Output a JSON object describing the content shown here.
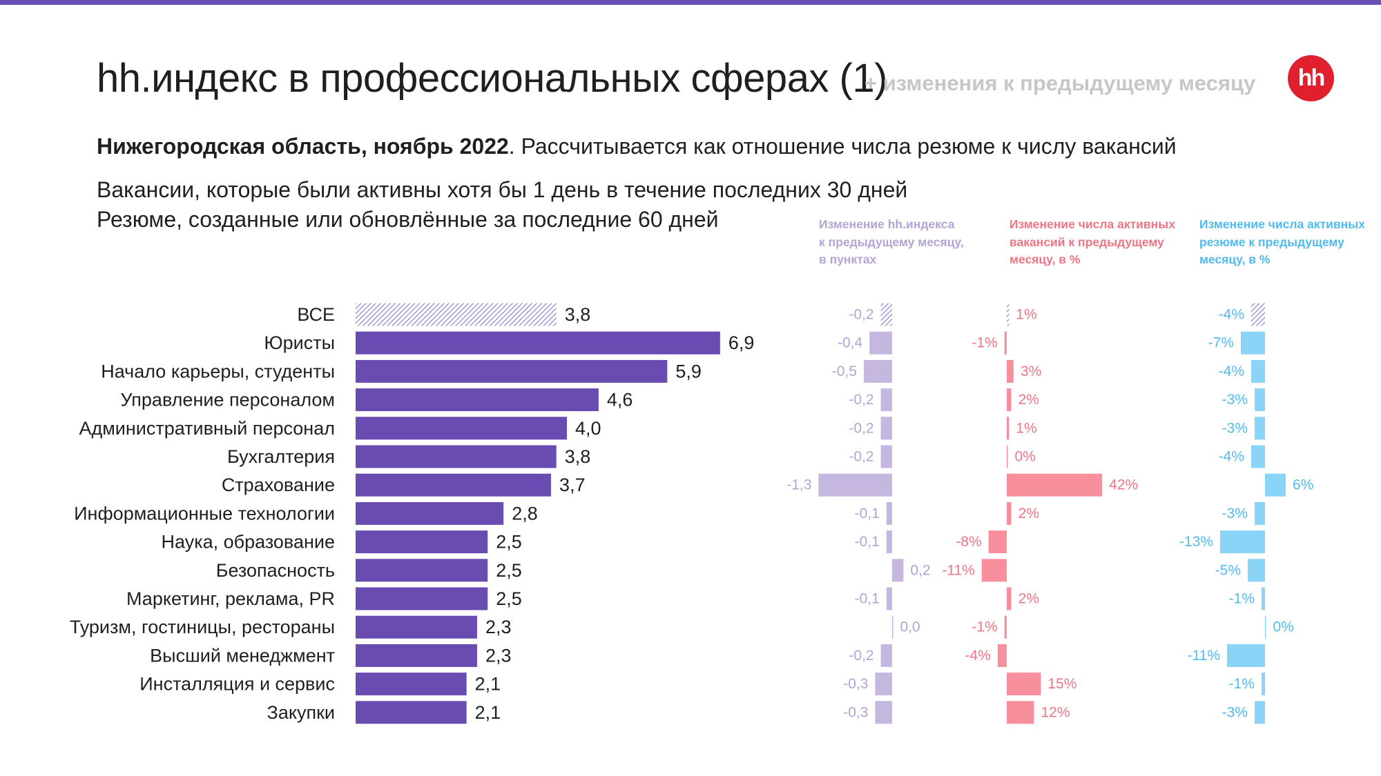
{
  "header": {
    "title": "hh.индекс в профессиональных сферах (1)",
    "title_suffix": "+ изменения к предыдущему месяцу",
    "logo_text": "hh",
    "subtitle_bold": "Нижегородская область, ноябрь 2022",
    "subtitle_rest": ". Рассчитывается как отношение числа резюме к числу вакансий",
    "note1": "Вакансии, которые были активны хотя бы 1 день в течение последних 30 дней",
    "note2": "Резюме, созданные или обновлённые за последние 60 дней"
  },
  "colors": {
    "topbar": "#6b4fb5",
    "main_bar": "#6a4bb1",
    "main_bar_hatch": "#9b87cf",
    "index_change": "#c5b7e0",
    "index_text": "#b3a3d6",
    "vacancy_change": "#f7909c",
    "vacancy_text": "#ee7583",
    "resume_change": "#8ad4f7",
    "resume_text": "#51baf0",
    "subtitle_gray": "#c7c7c7",
    "logo": "#e0202d"
  },
  "columns": {
    "index_header": "Изменение hh.индекса\nк предыдущему месяцу,\nв пунктах",
    "vacancy_header": "Изменение числа активных\nвакансий к предыдущему\nмесяцу, в %",
    "resume_header": "Изменение числа активных\nрезюме к предыдущему\nмесяцу, в %"
  },
  "chart_data": {
    "type": "bar",
    "orientation": "horizontal",
    "categories": [
      "ВСЕ",
      "Юристы",
      "Начало карьеры, студенты",
      "Управление персоналом",
      "Административный персонал",
      "Бухгалтерия",
      "Страхование",
      "Информационные технологии",
      "Наука, образование",
      "Безопасность",
      "Маркетинг, реклама, PR",
      "Туризм, гостиницы, рестораны",
      "Высший менеджмент",
      "Инсталляция и сервис",
      "Закупки"
    ],
    "series": [
      {
        "key": "index",
        "values": [
          3.8,
          6.9,
          5.9,
          4.6,
          4.0,
          3.8,
          3.7,
          2.8,
          2.5,
          2.5,
          2.5,
          2.3,
          2.3,
          2.1,
          2.1
        ],
        "labels": [
          "3,8",
          "6,9",
          "5,9",
          "4,6",
          "4,0",
          "3,8",
          "3,7",
          "2,8",
          "2,5",
          "2,5",
          "2,5",
          "2,3",
          "2,3",
          "2,1",
          "2,1"
        ]
      },
      {
        "key": "index_change",
        "values": [
          -0.2,
          -0.4,
          -0.5,
          -0.2,
          -0.2,
          -0.2,
          -1.3,
          -0.1,
          -0.1,
          0.2,
          -0.1,
          0.0,
          -0.2,
          -0.3,
          -0.3
        ],
        "labels": [
          "-0,2",
          "-0,4",
          "-0,5",
          "-0,2",
          "-0,2",
          "-0,2",
          "-1,3",
          "-0,1",
          "-0,1",
          "0,2",
          "-0,1",
          "0,0",
          "-0,2",
          "-0,3",
          "-0,3"
        ]
      },
      {
        "key": "vacancy_change",
        "values": [
          1,
          -1,
          3,
          2,
          1,
          0,
          42,
          2,
          -8,
          -11,
          2,
          -1,
          -4,
          15,
          12
        ],
        "labels": [
          "1%",
          "-1%",
          "3%",
          "2%",
          "1%",
          "0%",
          "42%",
          "2%",
          "-8%",
          "-11%",
          "2%",
          "-1%",
          "-4%",
          "15%",
          "12%"
        ]
      },
      {
        "key": "resume_change",
        "values": [
          -4,
          -7,
          -4,
          -3,
          -3,
          -4,
          6,
          -3,
          -13,
          -5,
          -1,
          0,
          -11,
          -1,
          -3
        ],
        "labels": [
          "-4%",
          "-7%",
          "-4%",
          "-3%",
          "-3%",
          "-4%",
          "6%",
          "-3%",
          "-13%",
          "-5%",
          "-1%",
          "0%",
          "-11%",
          "-1%",
          "-3%"
        ]
      }
    ],
    "highlight_first_row": "hatched"
  }
}
